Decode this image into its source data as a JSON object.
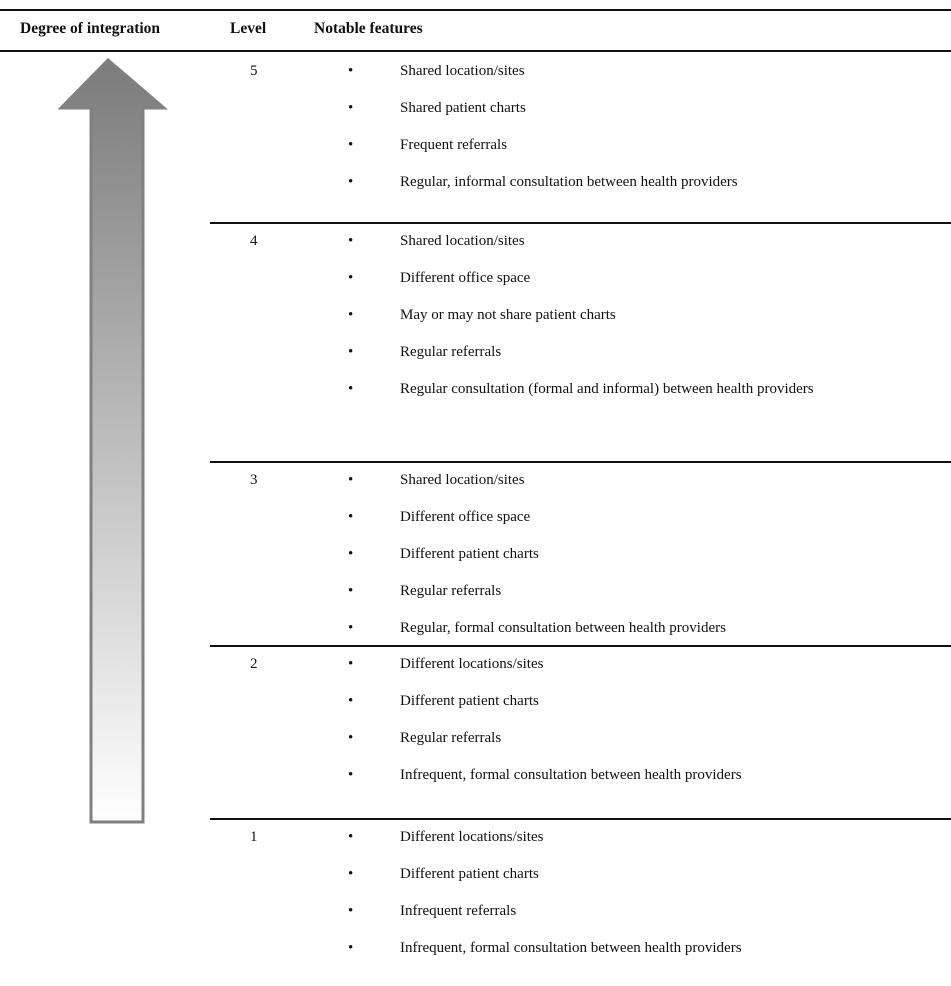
{
  "headers": {
    "degree": "Degree of integration",
    "level": "Level",
    "features": "Notable features"
  },
  "colors": {
    "arrow_top": "#7b7b7b",
    "arrow_bottom": "#ffffff",
    "arrow_border": "#808080",
    "rule": "#111111"
  },
  "levels": [
    {
      "level": "5",
      "features": [
        "Shared location/sites",
        "Shared patient charts",
        "Frequent referrals",
        "Regular, informal consultation between health providers"
      ]
    },
    {
      "level": "4",
      "features": [
        "Shared location/sites",
        "Different office space",
        "May or may not share patient charts",
        "Regular referrals",
        "Regular consultation (formal and informal) between health providers"
      ]
    },
    {
      "level": "3",
      "features": [
        "Shared location/sites",
        "Different office space",
        "Different patient charts",
        "Regular referrals",
        "Regular, formal consultation between health providers"
      ]
    },
    {
      "level": "2",
      "features": [
        "Different locations/sites",
        "Different patient charts",
        "Regular referrals",
        "Infrequent, formal consultation between health providers"
      ]
    },
    {
      "level": "1",
      "features": [
        "Different locations/sites",
        "Different patient charts",
        "Infrequent referrals",
        "Infrequent, formal consultation between health providers"
      ]
    }
  ],
  "bullet_char": "•"
}
